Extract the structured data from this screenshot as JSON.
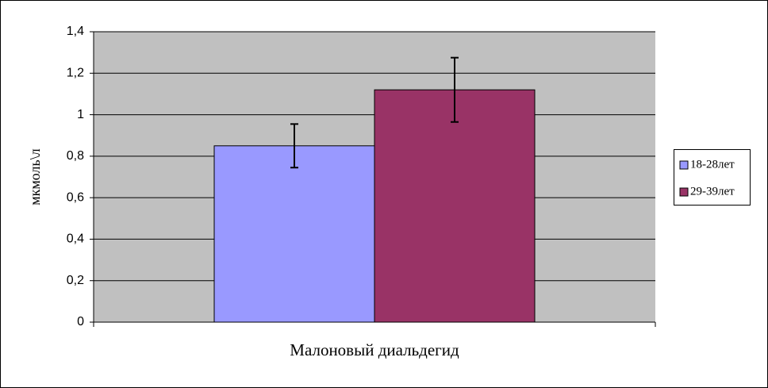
{
  "chart_data": {
    "type": "bar",
    "y_label": "мкмоль\\л",
    "categories": [
      "Малоновый диальдегид"
    ],
    "series": [
      {
        "name": "18-28лет",
        "color": "#9999ff",
        "values": [
          0.85
        ],
        "errors": [
          0.105
        ]
      },
      {
        "name": "29-39лет",
        "color": "#993366",
        "values": [
          1.12
        ],
        "errors": [
          0.155
        ]
      }
    ],
    "ylim": [
      0,
      1.4
    ],
    "yticks": [
      0,
      {
        "value": 0.2,
        "label": "0,2"
      },
      {
        "value": 0.4,
        "label": "0,4"
      },
      {
        "value": 0.6,
        "label": "0,6"
      },
      {
        "value": 0.8,
        "label": "0,8"
      },
      1,
      {
        "value": 1.2,
        "label": "1,2"
      },
      {
        "value": 1.4,
        "label": "1,4"
      }
    ],
    "grid": true,
    "legend": "right"
  }
}
